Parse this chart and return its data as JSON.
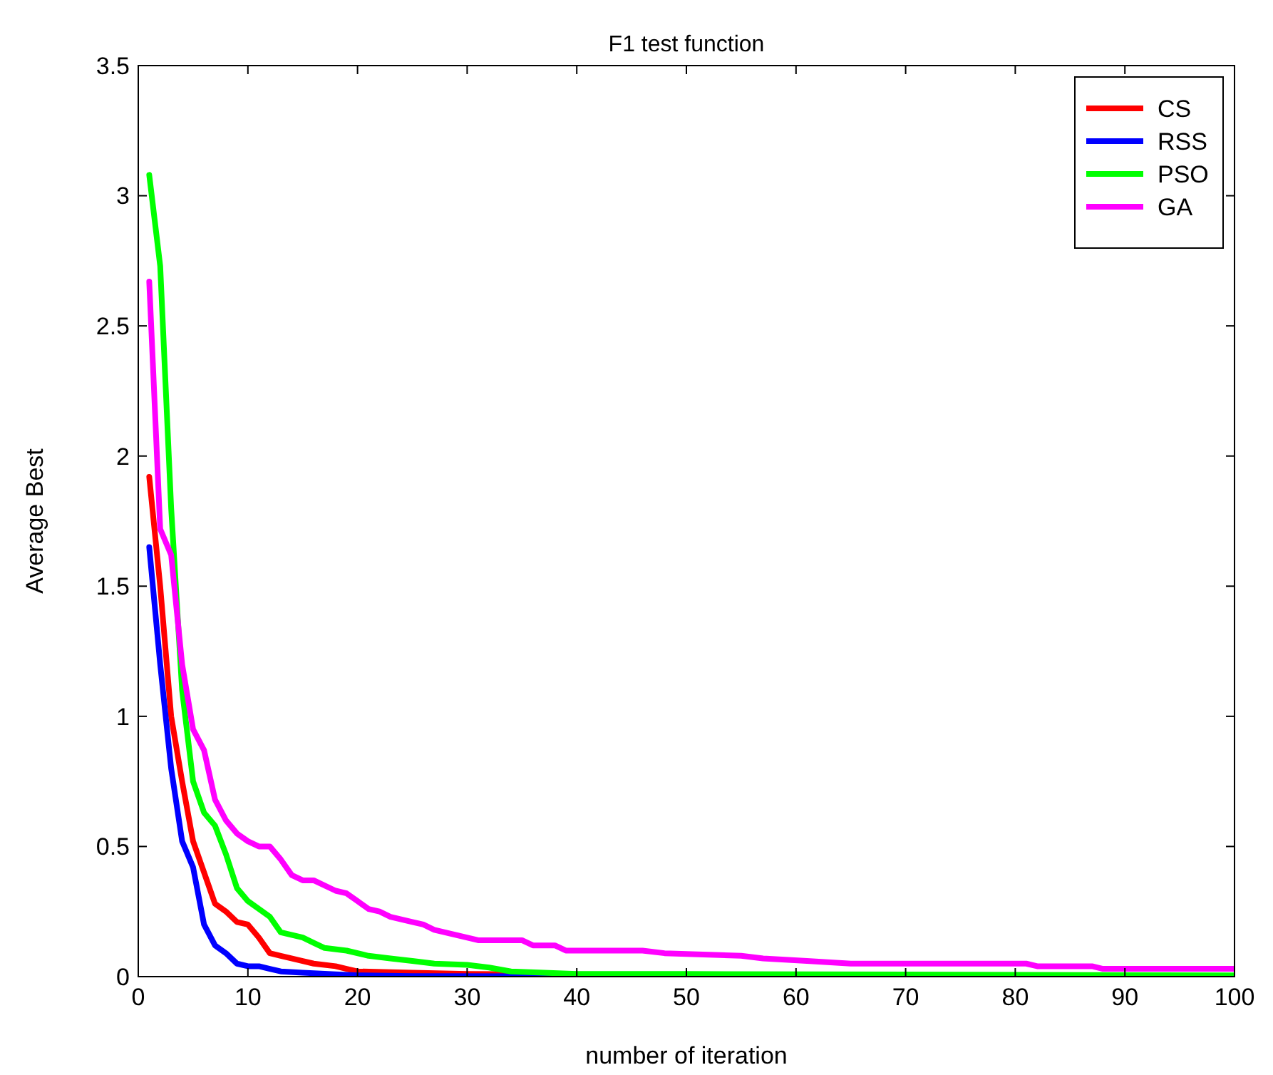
{
  "chart_data": {
    "type": "line",
    "title": "F1 test function",
    "xlabel": "number of iteration",
    "ylabel": "Average Best",
    "xlim": [
      0,
      100
    ],
    "ylim": [
      0,
      3.5
    ],
    "xticks": [
      0,
      10,
      20,
      30,
      40,
      50,
      60,
      70,
      80,
      90,
      100
    ],
    "yticks": [
      0,
      0.5,
      1,
      1.5,
      2,
      2.5,
      3,
      3.5
    ],
    "legend": "top right",
    "grid": false,
    "marker": "none",
    "line_style": "solid",
    "series": [
      {
        "name": "CS",
        "color": "#ff0000",
        "x": [
          1,
          2,
          3,
          4,
          5,
          6,
          7,
          8,
          9,
          10,
          11,
          12,
          13,
          15,
          16,
          18,
          19,
          20,
          25,
          30,
          100
        ],
        "values": [
          1.92,
          1.5,
          1.0,
          0.75,
          0.52,
          0.4,
          0.28,
          0.25,
          0.21,
          0.2,
          0.15,
          0.09,
          0.08,
          0.06,
          0.05,
          0.04,
          0.03,
          0.02,
          0.015,
          0.01,
          0
        ]
      },
      {
        "name": "RSS",
        "color": "#0000ff",
        "x": [
          1,
          2,
          3,
          4,
          5,
          6,
          7,
          8,
          9,
          10,
          11,
          12,
          13,
          15,
          20,
          25,
          100
        ],
        "values": [
          1.65,
          1.2,
          0.8,
          0.52,
          0.42,
          0.2,
          0.12,
          0.09,
          0.05,
          0.04,
          0.04,
          0.03,
          0.02,
          0.015,
          0.005,
          0.002,
          0
        ]
      },
      {
        "name": "PSO",
        "color": "#00ff00",
        "x": [
          1,
          2,
          3,
          4,
          5,
          6,
          7,
          8,
          9,
          10,
          11,
          12,
          13,
          15,
          16,
          17,
          19,
          21,
          23,
          25,
          27,
          30,
          32,
          34,
          37,
          40,
          50,
          100
        ],
        "values": [
          3.08,
          2.73,
          1.8,
          1.1,
          0.75,
          0.63,
          0.58,
          0.47,
          0.34,
          0.29,
          0.26,
          0.23,
          0.17,
          0.15,
          0.13,
          0.11,
          0.1,
          0.08,
          0.07,
          0.06,
          0.05,
          0.045,
          0.035,
          0.02,
          0.015,
          0.01,
          0.01,
          0.005
        ]
      },
      {
        "name": "GA",
        "color": "#ff00ff",
        "x": [
          1,
          2,
          3,
          4,
          5,
          6,
          7,
          8,
          9,
          10,
          11,
          12,
          13,
          14,
          15,
          16,
          18,
          19,
          20,
          21,
          22,
          23,
          25,
          26,
          27,
          29,
          31,
          35,
          36,
          38,
          39,
          46,
          48,
          55,
          57,
          61,
          65,
          81,
          82,
          87,
          88,
          100
        ],
        "values": [
          2.67,
          1.72,
          1.62,
          1.2,
          0.95,
          0.87,
          0.68,
          0.6,
          0.55,
          0.52,
          0.5,
          0.5,
          0.45,
          0.39,
          0.37,
          0.37,
          0.33,
          0.32,
          0.29,
          0.26,
          0.25,
          0.23,
          0.21,
          0.2,
          0.18,
          0.16,
          0.14,
          0.14,
          0.12,
          0.12,
          0.1,
          0.1,
          0.09,
          0.08,
          0.07,
          0.06,
          0.05,
          0.05,
          0.04,
          0.04,
          0.03,
          0.03
        ]
      }
    ]
  }
}
